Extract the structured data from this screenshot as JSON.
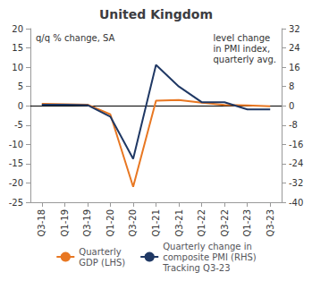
{
  "chart_data": {
    "type": "line",
    "title": "United Kingdom",
    "annotations": [
      "q/q % change, SA",
      "level change\nin PMI index,\nquarterly avg."
    ],
    "categories": [
      "Q3-18",
      "Q1-19",
      "Q3-19",
      "Q1-20",
      "Q3-20",
      "Q1-21",
      "Q3-21",
      "Q1-22",
      "Q3-22",
      "Q1-23",
      "Q3-23"
    ],
    "series": [
      {
        "name": "Quarterly\nGDP (LHS)",
        "color": "#E87722",
        "values": [
          0.5,
          0.4,
          0.3,
          -2.2,
          -21.0,
          1.3,
          1.5,
          0.8,
          0.2,
          0.1,
          -0.1
        ]
      },
      {
        "name": "Quarterly change in\ncomposite PMI (RHS)\nTracking Q3-23",
        "color": "#1F3864",
        "axis": "y2",
        "values": [
          0.5,
          0.5,
          0.3,
          -4.5,
          -22.0,
          17.0,
          8.0,
          1.5,
          1.5,
          -1.5,
          -1.5
        ]
      }
    ],
    "ylim": [
      -25,
      20
    ],
    "yticks": [
      -25,
      -20,
      -15,
      -10,
      -5,
      0,
      5,
      10,
      15,
      20
    ],
    "y2lim": [
      -40,
      32
    ],
    "y2ticks": [
      -40,
      -32,
      -24,
      -16,
      -8,
      0,
      8,
      16,
      24,
      32
    ],
    "grid": false,
    "legend": "bottom"
  }
}
